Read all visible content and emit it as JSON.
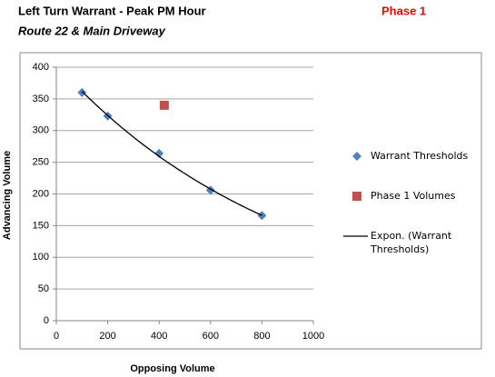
{
  "chart_data": {
    "type": "scatter",
    "title": "Left Turn Warrant - Peak PM Hour",
    "title_right": "Phase 1",
    "subtitle": "Route 22 & Main Driveway",
    "x_label": "Opposing Volume",
    "y_label": "Advancing Volume",
    "xlim": [
      0,
      1000
    ],
    "xticks": [
      0,
      200,
      400,
      600,
      800,
      1000
    ],
    "ylim": [
      0,
      400
    ],
    "yticks": [
      0,
      50,
      100,
      150,
      200,
      250,
      300,
      350,
      400
    ],
    "grid": true,
    "legend": "right",
    "series": [
      {
        "name": "Warrant Thresholds",
        "color": "#4f81bd",
        "marker": "diamond",
        "x": [
          100,
          200,
          400,
          600,
          800
        ],
        "values": [
          360,
          323,
          264,
          206,
          166
        ],
        "trendline": {
          "type": "exponential",
          "name": "Expon. (Warrant Thresholds)",
          "color": "#000000"
        }
      },
      {
        "name": "Phase 1 Volumes",
        "color": "#c0504d",
        "marker": "square",
        "x": [
          420
        ],
        "values": [
          340
        ]
      }
    ]
  }
}
